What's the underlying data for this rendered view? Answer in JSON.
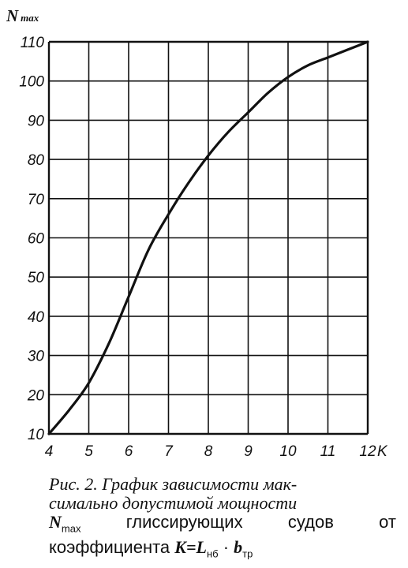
{
  "chart_data": {
    "type": "line",
    "ylabel": "N",
    "ylabel_sub": "max",
    "xlabel": "K",
    "xlim": [
      4,
      12
    ],
    "ylim": [
      10,
      110
    ],
    "x_ticks": [
      "4",
      "5",
      "6",
      "7",
      "8",
      "9",
      "10",
      "11",
      "12"
    ],
    "y_ticks": [
      "10",
      "20",
      "30",
      "40",
      "50",
      "60",
      "70",
      "80",
      "90",
      "100",
      "110"
    ],
    "grid": true,
    "series": [
      {
        "x": [
          4,
          4.5,
          5,
          5.5,
          6,
          6.5,
          7,
          7.5,
          8,
          8.5,
          9,
          9.5,
          10,
          10.5,
          11,
          11.5,
          12
        ],
        "y": [
          10,
          16,
          23,
          33,
          45,
          57,
          66,
          74,
          81,
          87,
          92,
          97,
          101,
          104,
          106,
          108,
          110
        ]
      }
    ]
  },
  "caption": {
    "line1": "Рис. 2. График зависимости мак-",
    "line2": "симально допустимой мощности",
    "line3_var": "N",
    "line3_sub": "max",
    "line3_words": [
      "глиссирующих",
      "судов",
      "от"
    ],
    "line4_text": "коэффициента",
    "line4_formula": "K=L",
    "line4_sub1": "нб",
    "line4_dot": "·",
    "line4_b": "b",
    "line4_sub2": "тр"
  },
  "colors": {
    "ink": "#111111",
    "background": "#ffffff"
  }
}
